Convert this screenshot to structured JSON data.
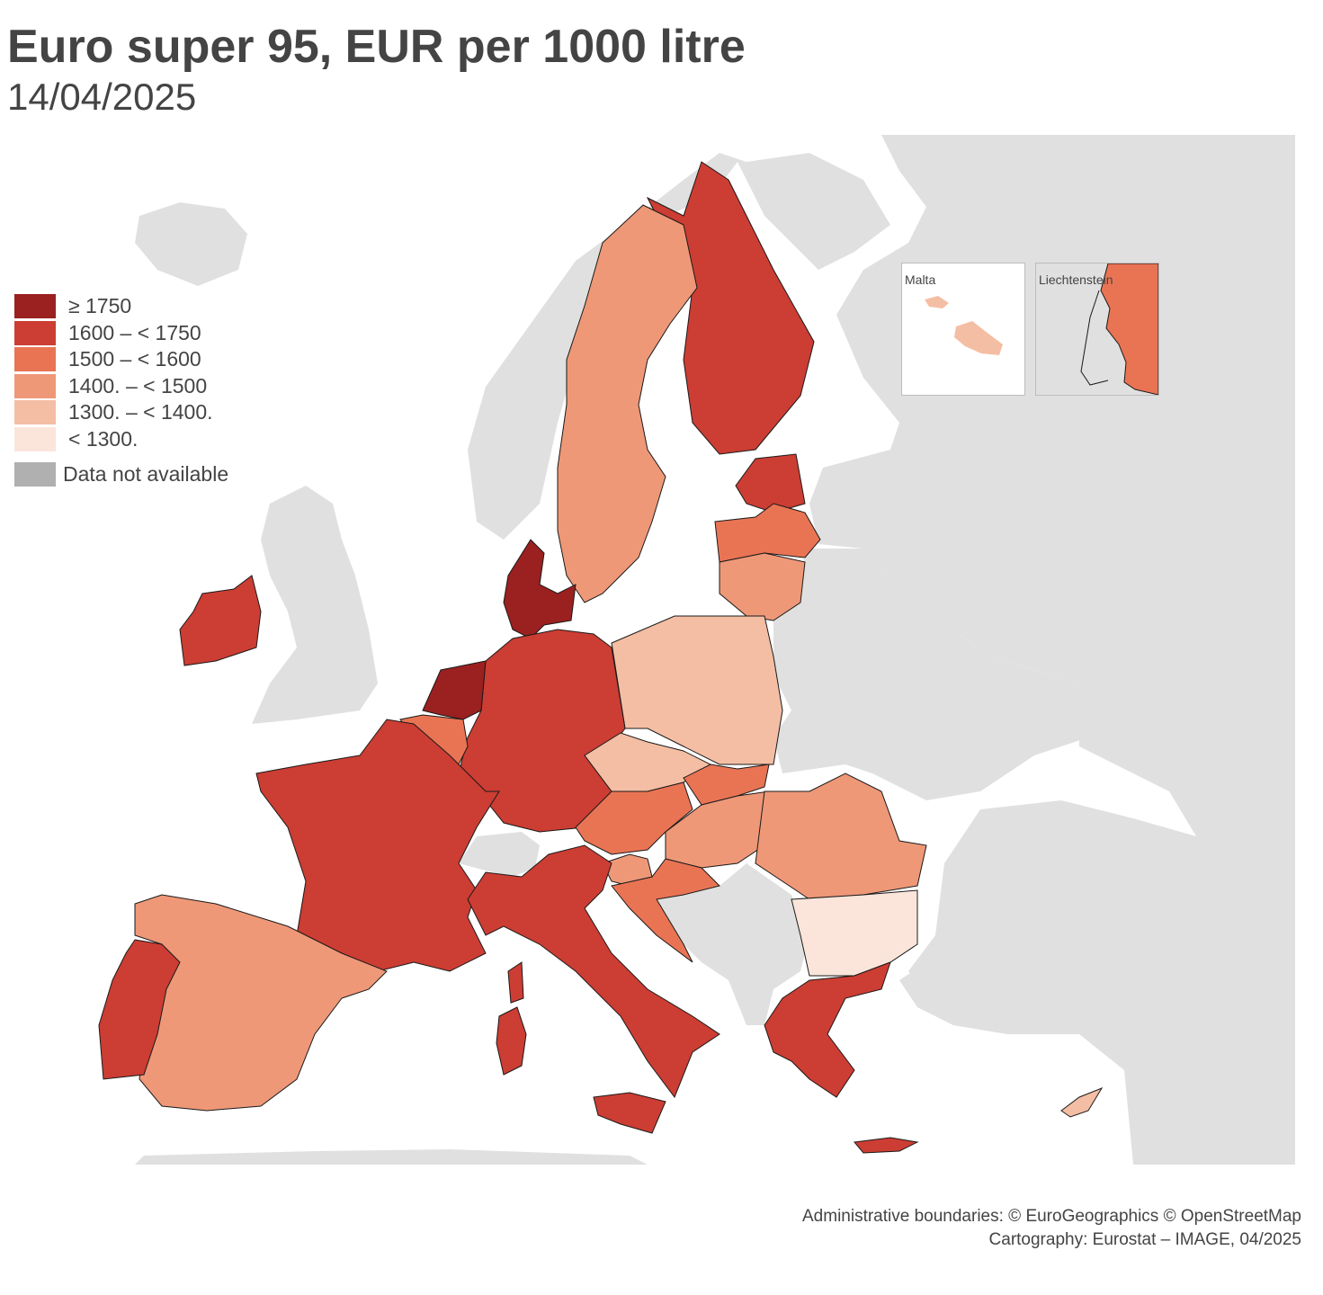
{
  "title": "Euro super 95, EUR per 1000 litre",
  "subtitle": "14/04/2025",
  "legend": {
    "classes": [
      {
        "label": "≥ 1750",
        "color": "#9b2020"
      },
      {
        "label": "1600 – < 1750",
        "color": "#cc3d33"
      },
      {
        "label": "1500 – < 1600",
        "color": "#e97454"
      },
      {
        "label": "1400. – < 1500",
        "color": "#ee9878"
      },
      {
        "label": "1300. – < 1400.",
        "color": "#f4bea4"
      },
      {
        "label": "< 1300.",
        "color": "#fbe5db"
      }
    ],
    "na": {
      "label": "Data not available",
      "color": "#b0b0b0"
    }
  },
  "insets": {
    "malta": {
      "label": "Malta"
    },
    "liechtenstein": {
      "label": "Liechtenstein"
    }
  },
  "colors": {
    "land": "#e0e0e0",
    "sea": "#ffffff",
    "border": "#1a1a1a"
  },
  "countries": [
    {
      "name": "Netherlands",
      "class": 0
    },
    {
      "name": "Denmark",
      "class": 0
    },
    {
      "name": "Finland",
      "class": 1
    },
    {
      "name": "Estonia",
      "class": 1
    },
    {
      "name": "Germany",
      "class": 1
    },
    {
      "name": "France",
      "class": 1
    },
    {
      "name": "Italy",
      "class": 1
    },
    {
      "name": "Ireland",
      "class": 1
    },
    {
      "name": "Portugal",
      "class": 1
    },
    {
      "name": "Greece",
      "class": 1
    },
    {
      "name": "Latvia",
      "class": 2
    },
    {
      "name": "Belgium",
      "class": 2
    },
    {
      "name": "Austria",
      "class": 2
    },
    {
      "name": "Slovakia",
      "class": 2
    },
    {
      "name": "Croatia",
      "class": 2
    },
    {
      "name": "Liechtenstein",
      "class": 2
    },
    {
      "name": "Sweden",
      "class": 3
    },
    {
      "name": "Lithuania",
      "class": 3
    },
    {
      "name": "Spain",
      "class": 3
    },
    {
      "name": "Hungary",
      "class": 3
    },
    {
      "name": "Romania",
      "class": 3
    },
    {
      "name": "Slovenia",
      "class": 3
    },
    {
      "name": "Poland",
      "class": 4
    },
    {
      "name": "Czechia",
      "class": 4
    },
    {
      "name": "Malta",
      "class": 4
    },
    {
      "name": "Cyprus",
      "class": 4
    },
    {
      "name": "Bulgaria",
      "class": 5
    }
  ],
  "credits": {
    "line1": "Administrative boundaries: © EuroGeographics © OpenStreetMap",
    "line2": "Cartography: Eurostat – IMAGE, 04/2025"
  }
}
